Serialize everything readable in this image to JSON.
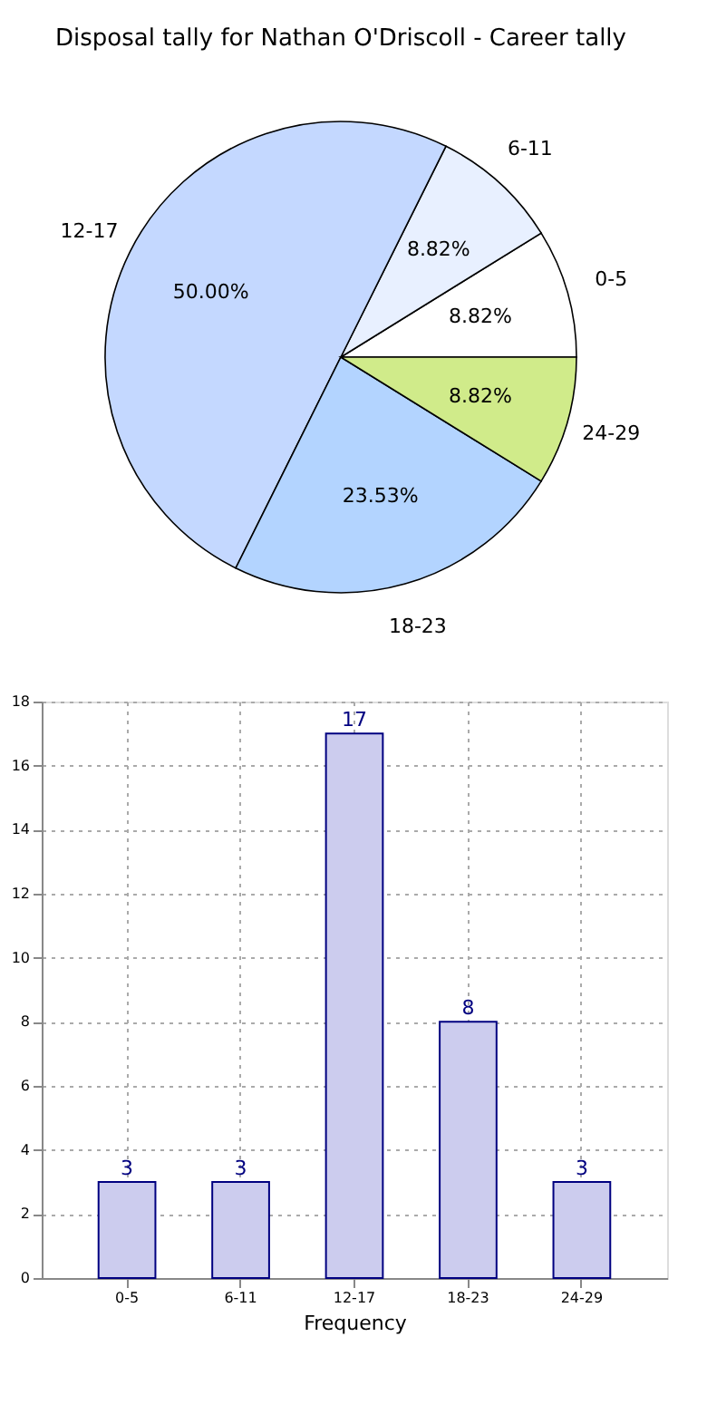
{
  "chart_data": [
    {
      "type": "pie",
      "title": "Disposal tally for Nathan O'Driscoll - Career tally",
      "categories": [
        "0-5",
        "6-11",
        "12-17",
        "18-23",
        "24-29"
      ],
      "values": [
        8.82,
        8.82,
        50.0,
        23.53,
        8.82
      ],
      "colors": [
        "#ffffff",
        "#e8f0ff",
        "#c4d8ff",
        "#b3d4ff",
        "#d0eb8a"
      ],
      "value_labels": [
        "8.82%",
        "8.82%",
        "50.00%",
        "23.53%",
        "8.82%"
      ],
      "legend": false
    },
    {
      "type": "bar",
      "categories": [
        "0-5",
        "6-11",
        "12-17",
        "18-23",
        "24-29"
      ],
      "values": [
        3,
        3,
        17,
        8,
        3
      ],
      "color": "#ccccee",
      "xlabel": "Frequency",
      "ylim": [
        0,
        18
      ],
      "yticks": [
        0,
        2,
        4,
        6,
        8,
        10,
        12,
        14,
        16,
        18
      ],
      "grid": true,
      "data_labels": true
    }
  ]
}
